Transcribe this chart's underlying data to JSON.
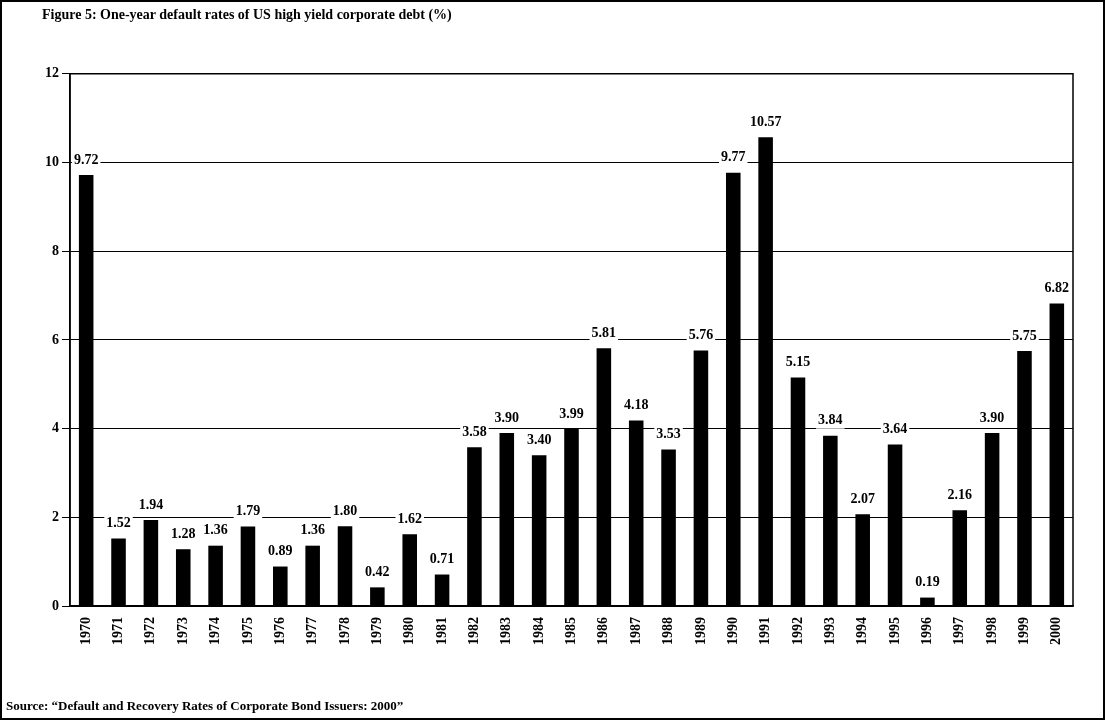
{
  "chart_data": {
    "type": "bar",
    "title": "Figure 5: One-year default rates of US high yield corporate debt (%)",
    "categories": [
      "1970",
      "1971",
      "1972",
      "1973",
      "1974",
      "1975",
      "1976",
      "1977",
      "1978",
      "1979",
      "1980",
      "1981",
      "1982",
      "1983",
      "1984",
      "1985",
      "1986",
      "1987",
      "1988",
      "1989",
      "1990",
      "1991",
      "1992",
      "1993",
      "1994",
      "1995",
      "1996",
      "1997",
      "1998",
      "1999",
      "2000"
    ],
    "values": [
      9.72,
      1.52,
      1.94,
      1.28,
      1.36,
      1.79,
      0.89,
      1.36,
      1.8,
      0.42,
      1.62,
      0.71,
      3.58,
      3.9,
      3.4,
      3.99,
      5.81,
      4.18,
      3.53,
      5.76,
      9.77,
      10.57,
      5.15,
      3.84,
      2.07,
      3.64,
      0.19,
      2.16,
      3.9,
      5.75,
      6.82
    ],
    "value_labels": [
      "9.72",
      "1.52",
      "1.94",
      "1.28",
      "1.36",
      "1.79",
      "0.89",
      "1.36",
      "1.80",
      "0.42",
      "1.62",
      "0.71",
      "3.58",
      "3.90",
      "3.40",
      "3.99",
      "5.81",
      "4.18",
      "3.53",
      "5.76",
      "9.77",
      "10.57",
      "5.15",
      "3.84",
      "2.07",
      "3.64",
      "0.19",
      "2.16",
      "3.90",
      "5.75",
      "6.82"
    ],
    "color": "#000000",
    "ylim": [
      0,
      12
    ],
    "yticks": [
      0,
      2,
      4,
      6,
      8,
      10,
      12
    ],
    "grid": "y",
    "legend": false,
    "annotations": [
      "Source: “Default and Recovery Rates of Corporate Bond Issuers: 2000”"
    ]
  }
}
